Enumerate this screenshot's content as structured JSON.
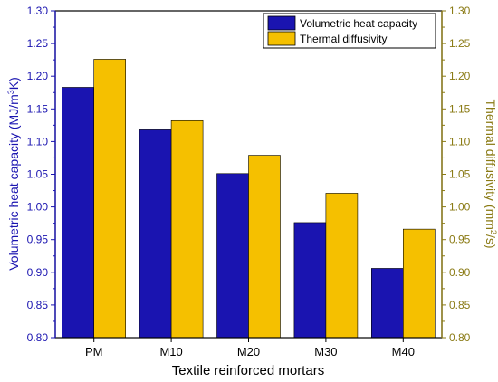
{
  "chart_data": {
    "type": "bar",
    "categories": [
      "PM",
      "M10",
      "M20",
      "M30",
      "M40"
    ],
    "series": [
      {
        "name": "Volumetric heat capacity",
        "axis": "left",
        "values": [
          1.183,
          1.118,
          1.051,
          0.976,
          0.906
        ],
        "color": "#1a14b0"
      },
      {
        "name": "Thermal diffusivity",
        "axis": "right",
        "values": [
          1.226,
          1.132,
          1.079,
          1.021,
          0.966
        ],
        "color": "#f5c000"
      }
    ],
    "xlabel": "Textile reinforced mortars",
    "ylabel_left_prefix": "Volumetric heat capacity (MJ/m",
    "ylabel_left_sup": "3",
    "ylabel_left_suffix": "K)",
    "ylabel_right_prefix": "Thermal diffusivity (mm",
    "ylabel_right_sup": "2",
    "ylabel_right_suffix": "/s)",
    "ylim_left": [
      0.8,
      1.3
    ],
    "ylim_right": [
      0.8,
      1.3
    ],
    "yticks": [
      "0.80",
      "0.85",
      "0.90",
      "0.95",
      "1.00",
      "1.05",
      "1.10",
      "1.15",
      "1.20",
      "1.25",
      "1.30"
    ],
    "left_axis_color": "#1a14b0",
    "right_axis_color": "#8a7a14",
    "legend_position": "top-right",
    "grid": false
  }
}
